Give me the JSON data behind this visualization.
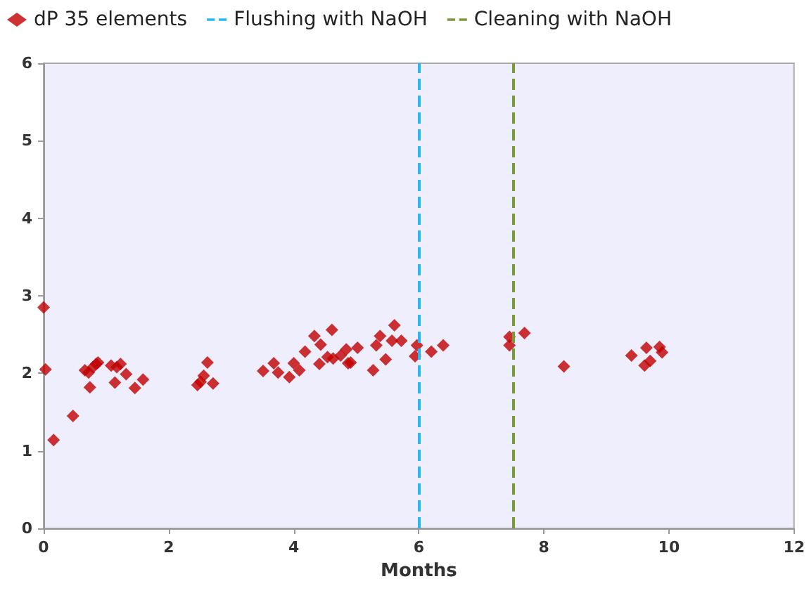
{
  "chart_data": {
    "type": "scatter",
    "xlabel": "Months",
    "xlim": [
      0,
      12
    ],
    "xticks": [
      0,
      2,
      4,
      6,
      8,
      10,
      12
    ],
    "ylim": [
      0,
      6
    ],
    "yticks": [
      0,
      1,
      2,
      3,
      4,
      5,
      6
    ],
    "grid": false,
    "legend": "top left",
    "marker": "diamond",
    "series": [
      {
        "name": "dP 35 elements",
        "color": "#c00000",
        "x": [
          0,
          0.03,
          0.16,
          0.47,
          0.66,
          0.72,
          0.74,
          0.79,
          0.84,
          0.87,
          1.08,
          1.14,
          1.17,
          1.23,
          1.32,
          1.46,
          1.59,
          2.46,
          2.51,
          2.56,
          2.62,
          2.71,
          3.51,
          3.68,
          3.75,
          3.93,
          4.0,
          4.09,
          4.18,
          4.33,
          4.43,
          4.41,
          4.54,
          4.61,
          4.63,
          4.75,
          4.84,
          4.87,
          5.02,
          4.91,
          5.27,
          5.32,
          5.38,
          5.47,
          5.61,
          5.72,
          5.57,
          5.97,
          5.94,
          6.2,
          6.39,
          7.45,
          7.45,
          7.69,
          8.32,
          9.4,
          9.64,
          9.61,
          9.7,
          9.85,
          9.89
        ],
        "values": [
          2.85,
          2.05,
          1.14,
          1.45,
          2.04,
          2.01,
          1.82,
          2.08,
          2.12,
          2.14,
          2.1,
          1.88,
          2.08,
          2.12,
          1.99,
          1.81,
          1.92,
          1.85,
          1.89,
          1.97,
          2.14,
          1.87,
          2.03,
          2.13,
          2.01,
          1.95,
          2.13,
          2.04,
          2.28,
          2.48,
          2.37,
          2.12,
          2.21,
          2.56,
          2.19,
          2.23,
          2.31,
          2.13,
          2.33,
          2.14,
          2.04,
          2.36,
          2.48,
          2.18,
          2.62,
          2.42,
          2.42,
          2.36,
          2.22,
          2.28,
          2.36,
          2.47,
          2.36,
          2.52,
          2.09,
          2.23,
          2.33,
          2.1,
          2.16,
          2.34,
          2.27
        ]
      }
    ],
    "ref_lines": [
      {
        "axis": "x",
        "value": 6,
        "label": "Flushing with NaOH",
        "color": "#29b6f6",
        "line_style": "dashed"
      },
      {
        "axis": "x",
        "value": 7.5,
        "label": "Cleaning with NaOH",
        "color": "#7a9a3a",
        "line_style": "dashed"
      }
    ]
  }
}
